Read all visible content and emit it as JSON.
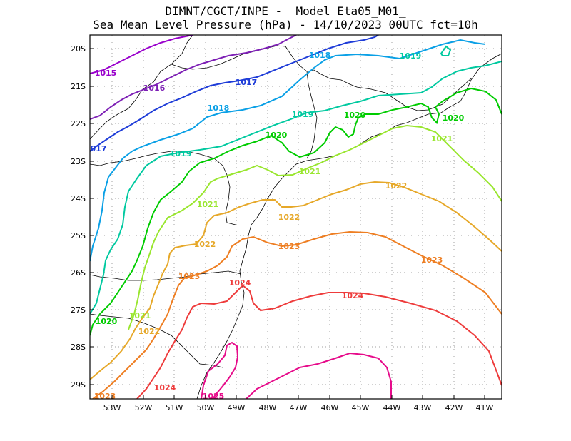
{
  "title": {
    "line1": "DIMNT/CGCT/INPE -  Model Eta05_M01_",
    "line2": "Sea Mean Level Pressure (hPa) - 14/10/2023 00UTC fct=10h"
  },
  "map": {
    "lat_labels": [
      "20S",
      "21S",
      "22S",
      "23S",
      "24S",
      "25S",
      "26S",
      "27S",
      "28S",
      "29S"
    ],
    "lon_labels": [
      "53W",
      "52W",
      "51W",
      "50W",
      "49W",
      "48W",
      "47W",
      "46W",
      "45W",
      "44W",
      "43W",
      "42W",
      "41W"
    ]
  },
  "contours": [
    {
      "level": "1015",
      "color": "#9900cc"
    },
    {
      "level": "1016",
      "color": "#7d1fb5"
    },
    {
      "level": "1017",
      "color": "#1e3cd8"
    },
    {
      "level": "1018",
      "color": "#0aa0e6"
    },
    {
      "level": "1019",
      "color": "#00c9a0"
    },
    {
      "level": "1020",
      "color": "#00cc00"
    },
    {
      "level": "1021",
      "color": "#99e62e"
    },
    {
      "level": "1022",
      "color": "#e6a829"
    },
    {
      "level": "1023",
      "color": "#ee7e22"
    },
    {
      "level": "1024",
      "color": "#ee3b3b"
    },
    {
      "level": "1025",
      "color": "#e60b8a"
    }
  ],
  "contour_labels": [
    {
      "text": "1015",
      "color": "#9900cc"
    },
    {
      "text": "1016",
      "color": "#7d1fb5"
    },
    {
      "text": "1017",
      "color": "#1e3cd8"
    },
    {
      "text": "017",
      "color": "#1e3cd8"
    },
    {
      "text": "1018",
      "color": "#0aa0e6"
    },
    {
      "text": "1018",
      "color": "#0aa0e6"
    },
    {
      "text": "1019",
      "color": "#00c9a0"
    },
    {
      "text": "1019",
      "color": "#00c9a0"
    },
    {
      "text": "1019",
      "color": "#00c9a0"
    },
    {
      "text": "1020",
      "color": "#00cc00"
    },
    {
      "text": "1020",
      "color": "#00cc00"
    },
    {
      "text": "1020",
      "color": "#00cc00"
    },
    {
      "text": "1020",
      "color": "#00cc00"
    },
    {
      "text": "1021",
      "color": "#99e62e"
    },
    {
      "text": "1021",
      "color": "#99e62e"
    },
    {
      "text": "1021",
      "color": "#99e62e"
    },
    {
      "text": "1021",
      "color": "#99e62e"
    },
    {
      "text": "1022",
      "color": "#e6a829"
    },
    {
      "text": "1022",
      "color": "#e6a829"
    },
    {
      "text": "1022",
      "color": "#e6a829"
    },
    {
      "text": "1022",
      "color": "#e6a829"
    },
    {
      "text": "1023",
      "color": "#ee7e22"
    },
    {
      "text": "1023",
      "color": "#ee7e22"
    },
    {
      "text": "1023",
      "color": "#ee7e22"
    },
    {
      "text": "1023",
      "color": "#ee7e22"
    },
    {
      "text": "1024",
      "color": "#ee3b3b"
    },
    {
      "text": "1024",
      "color": "#ee3b3b"
    },
    {
      "text": "1024",
      "color": "#ee3b3b"
    },
    {
      "text": "1025",
      "color": "#e60b8a"
    }
  ]
}
